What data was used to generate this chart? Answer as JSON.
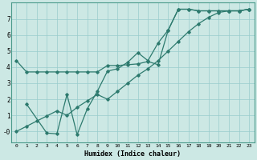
{
  "title": "",
  "xlabel": "Humidex (Indice chaleur)",
  "bg_color": "#cce8e4",
  "grid_color": "#99cccc",
  "line_color": "#2d7a6e",
  "xlim": [
    -0.5,
    23.5
  ],
  "ylim": [
    -0.7,
    8.0
  ],
  "yticks": [
    0,
    1,
    2,
    3,
    4,
    5,
    6,
    7
  ],
  "ytick_labels": [
    "-0",
    "1",
    "2",
    "3",
    "4",
    "5",
    "6",
    "7"
  ],
  "xticks": [
    0,
    1,
    2,
    3,
    4,
    5,
    6,
    7,
    8,
    9,
    10,
    11,
    12,
    13,
    14,
    15,
    16,
    17,
    18,
    19,
    20,
    21,
    22,
    23
  ],
  "line1_x": [
    0,
    1,
    2,
    3,
    4,
    5,
    6,
    7,
    8,
    9,
    10,
    11,
    12,
    13,
    14,
    15,
    16,
    17,
    18,
    19,
    20,
    21,
    22,
    23
  ],
  "line1_y": [
    4.4,
    3.7,
    3.7,
    3.7,
    3.7,
    3.7,
    3.7,
    3.7,
    3.7,
    4.1,
    4.1,
    4.15,
    4.2,
    4.35,
    4.15,
    6.3,
    7.6,
    7.6,
    7.5,
    7.5,
    7.5,
    7.5,
    7.5,
    7.6
  ],
  "line2_x": [
    1,
    3,
    4,
    5,
    6,
    7,
    8,
    9,
    10,
    11,
    12,
    13,
    14,
    15,
    16,
    17,
    18,
    19,
    20,
    21,
    22,
    23
  ],
  "line2_y": [
    1.7,
    -0.1,
    -0.15,
    2.3,
    -0.2,
    1.4,
    2.5,
    3.75,
    3.9,
    4.3,
    4.9,
    4.4,
    5.5,
    6.3,
    7.6,
    7.6,
    7.5,
    7.5,
    7.5,
    7.5,
    7.5,
    7.6
  ],
  "line3_x": [
    0,
    1,
    2,
    3,
    4,
    5,
    6,
    7,
    8,
    9,
    10,
    11,
    12,
    13,
    14,
    15,
    16,
    17,
    18,
    19,
    20,
    21,
    22,
    23
  ],
  "line3_y": [
    0.0,
    0.32,
    0.64,
    0.96,
    1.28,
    1.0,
    1.5,
    1.9,
    2.3,
    2.0,
    2.5,
    3.0,
    3.5,
    3.9,
    4.4,
    5.0,
    5.6,
    6.2,
    6.7,
    7.1,
    7.4,
    7.5,
    7.5,
    7.6
  ]
}
